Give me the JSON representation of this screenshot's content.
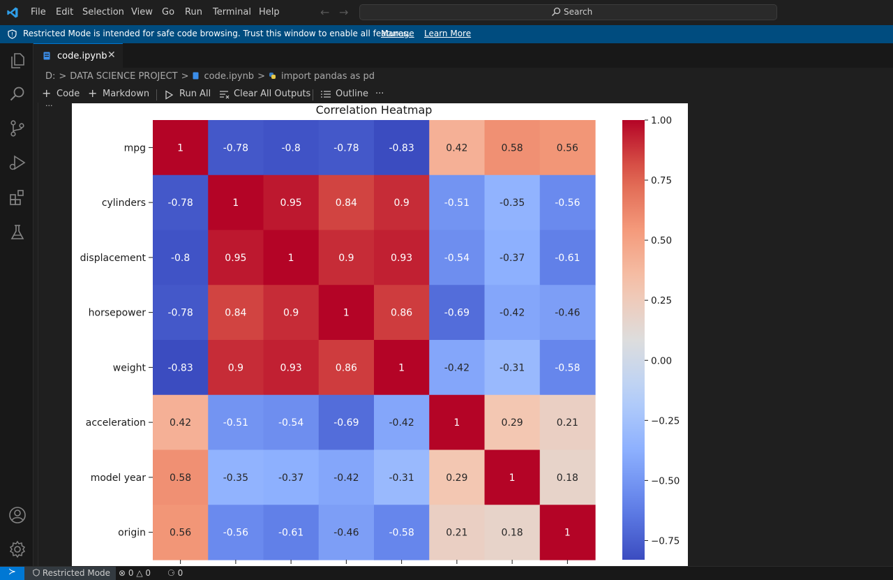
{
  "titlebar": {
    "menu": [
      "File",
      "Edit",
      "Selection",
      "View",
      "Go",
      "Run",
      "Terminal",
      "Help"
    ],
    "search_label": "Search",
    "icons": {
      "logo": "vscode-logo-icon",
      "back": "arrow-left-icon",
      "forward": "arrow-right-icon",
      "search": "search-icon"
    }
  },
  "banner": {
    "text": "Restricted Mode is intended for safe code browsing. Trust this window to enable all features.",
    "manage": "Manage",
    "learn_more": "Learn More",
    "color": "#004c7f"
  },
  "activitybar": {
    "icons": [
      "explorer-icon",
      "search-icon",
      "source-control-icon",
      "run-debug-icon",
      "extensions-icon",
      "testing-icon",
      "account-icon",
      "settings-gear-icon"
    ]
  },
  "tab": {
    "label": "code.ipynb",
    "close": "✕"
  },
  "breadcrumb": {
    "drive": "D:",
    "folder": "DATA SCIENCE PROJECT",
    "file": "code.ipynb",
    "cell": "import pandas as pd",
    "separator": ">"
  },
  "notebook_toolbar": {
    "code": "Code",
    "markdown": "Markdown",
    "run_all": "Run All",
    "clear_outputs": "Clear All Outputs",
    "outline": "Outline",
    "more": "···"
  },
  "cell": {
    "dots": "..."
  },
  "chart_data": {
    "type": "heatmap",
    "title": "Correlation Heatmap",
    "labels": [
      "mpg",
      "cylinders",
      "displacement",
      "horsepower",
      "weight",
      "acceleration",
      "model year",
      "origin"
    ],
    "matrix": [
      [
        1,
        -0.78,
        -0.8,
        -0.78,
        -0.83,
        0.42,
        0.58,
        0.56
      ],
      [
        -0.78,
        1,
        0.95,
        0.84,
        0.9,
        -0.51,
        -0.35,
        -0.56
      ],
      [
        -0.8,
        0.95,
        1,
        0.9,
        0.93,
        -0.54,
        -0.37,
        -0.61
      ],
      [
        -0.78,
        0.84,
        0.9,
        1,
        0.86,
        -0.69,
        -0.42,
        -0.46
      ],
      [
        -0.83,
        0.9,
        0.93,
        0.86,
        1,
        -0.42,
        -0.31,
        -0.58
      ],
      [
        0.42,
        -0.51,
        -0.54,
        -0.69,
        -0.42,
        1,
        0.29,
        0.21
      ],
      [
        0.58,
        -0.35,
        -0.37,
        -0.42,
        -0.31,
        0.29,
        1,
        0.18
      ],
      [
        0.56,
        -0.56,
        -0.61,
        -0.46,
        -0.58,
        0.21,
        0.18,
        1
      ]
    ],
    "colormap": "coolwarm",
    "colorbar_ticks": [
      "1.00",
      "0.75",
      "0.50",
      "0.25",
      "0.00",
      "−0.25",
      "−0.50",
      "−0.75"
    ],
    "colorbar_tick_values": [
      1.0,
      0.75,
      0.5,
      0.25,
      0.0,
      -0.25,
      -0.5,
      -0.75
    ],
    "colorbar_range": [
      -0.83,
      1.0
    ]
  },
  "statusbar": {
    "restricted": "Restricted Mode",
    "errors": "0",
    "warnings": "0",
    "ports": "0",
    "accent": "#0078d4"
  }
}
